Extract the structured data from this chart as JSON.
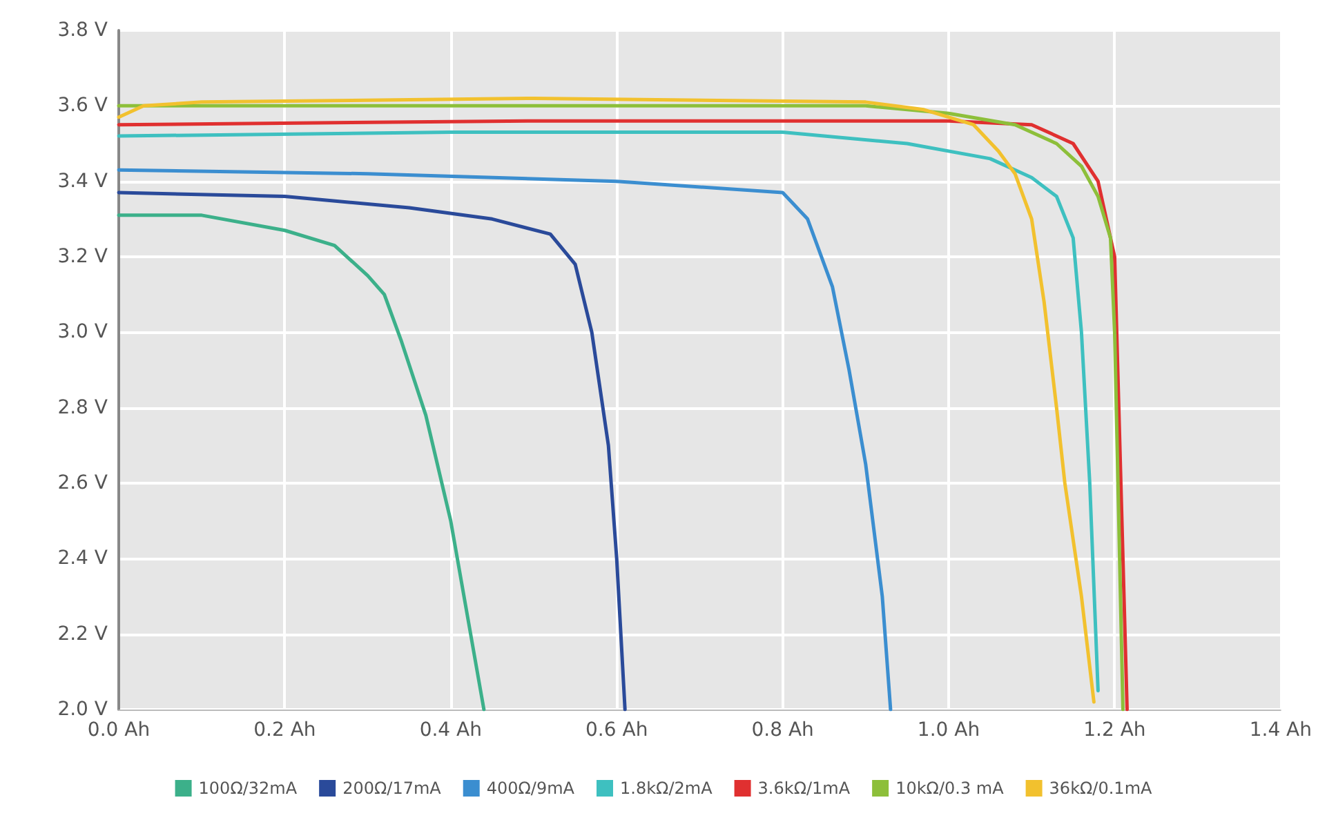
{
  "chart_data": {
    "type": "line",
    "xlim": [
      0,
      1.4
    ],
    "ylim": [
      2.0,
      3.8
    ],
    "xticks": [
      {
        "value": 0,
        "label": "0.0 Ah"
      },
      {
        "value": 0.2,
        "label": "0.2 Ah"
      },
      {
        "value": 0.4,
        "label": "0.4 Ah"
      },
      {
        "value": 0.6,
        "label": "0.6 Ah"
      },
      {
        "value": 0.8,
        "label": "0.8 Ah"
      },
      {
        "value": 1.0,
        "label": "1.0 Ah"
      },
      {
        "value": 1.2,
        "label": "1.2 Ah"
      },
      {
        "value": 1.4,
        "label": "1.4 Ah"
      }
    ],
    "yticks": [
      {
        "value": 2.0,
        "label": "2.0 V"
      },
      {
        "value": 2.2,
        "label": "2.2 V"
      },
      {
        "value": 2.4,
        "label": "2.4 V"
      },
      {
        "value": 2.6,
        "label": "2.6 V"
      },
      {
        "value": 2.8,
        "label": "2.8 V"
      },
      {
        "value": 3.0,
        "label": "3.0 V"
      },
      {
        "value": 3.2,
        "label": "3.2 V"
      },
      {
        "value": 3.4,
        "label": "3.4 V"
      },
      {
        "value": 3.6,
        "label": "3.6 V"
      },
      {
        "value": 3.8,
        "label": "3.8 V"
      }
    ],
    "grid": true,
    "legend": "bottom",
    "marker": "none",
    "line_style": "solid",
    "series": [
      {
        "name": "100Ω/32mA",
        "color": "#3cb08a",
        "x": [
          0,
          0.1,
          0.2,
          0.26,
          0.3,
          0.32,
          0.34,
          0.37,
          0.4,
          0.42,
          0.44
        ],
        "values": [
          3.31,
          3.31,
          3.27,
          3.23,
          3.15,
          3.1,
          2.98,
          2.78,
          2.5,
          2.25,
          2.0
        ]
      },
      {
        "name": "200Ω/17mA",
        "color": "#2a4a9a",
        "x": [
          0,
          0.2,
          0.35,
          0.45,
          0.52,
          0.55,
          0.57,
          0.59,
          0.6,
          0.61
        ],
        "values": [
          3.37,
          3.36,
          3.33,
          3.3,
          3.26,
          3.18,
          3.0,
          2.7,
          2.4,
          2.0
        ]
      },
      {
        "name": "400Ω/9mA",
        "color": "#3b8ed0",
        "x": [
          0,
          0.3,
          0.6,
          0.8,
          0.83,
          0.86,
          0.88,
          0.9,
          0.92,
          0.93
        ],
        "values": [
          3.43,
          3.42,
          3.4,
          3.37,
          3.3,
          3.12,
          2.9,
          2.65,
          2.3,
          2.0
        ]
      },
      {
        "name": "1.8kΩ/2mA",
        "color": "#3ec0c0",
        "x": [
          0,
          0.4,
          0.8,
          0.95,
          1.05,
          1.1,
          1.13,
          1.15,
          1.16,
          1.17,
          1.18
        ],
        "values": [
          3.52,
          3.53,
          3.53,
          3.5,
          3.46,
          3.41,
          3.36,
          3.25,
          3.0,
          2.6,
          2.05
        ]
      },
      {
        "name": "3.6kΩ/1mA",
        "color": "#e03030",
        "x": [
          0,
          0.5,
          1.0,
          1.1,
          1.15,
          1.18,
          1.2,
          1.205,
          1.21,
          1.215
        ],
        "values": [
          3.55,
          3.56,
          3.56,
          3.55,
          3.5,
          3.4,
          3.2,
          2.8,
          2.4,
          2.0
        ]
      },
      {
        "name": "10kΩ/0.3 mA",
        "color": "#8dbf3a",
        "x": [
          0,
          0.5,
          0.9,
          1.0,
          1.08,
          1.13,
          1.16,
          1.18,
          1.195,
          1.2,
          1.205,
          1.21
        ],
        "values": [
          3.6,
          3.6,
          3.6,
          3.58,
          3.55,
          3.5,
          3.44,
          3.36,
          3.25,
          3.0,
          2.5,
          2.0
        ]
      },
      {
        "name": "36kΩ/0.1mA",
        "color": "#f2c12e",
        "x": [
          0,
          0.03,
          0.1,
          0.5,
          0.9,
          0.97,
          1.03,
          1.06,
          1.08,
          1.1,
          1.115,
          1.13,
          1.14,
          1.16,
          1.175
        ],
        "values": [
          3.57,
          3.6,
          3.61,
          3.62,
          3.61,
          3.59,
          3.55,
          3.48,
          3.42,
          3.3,
          3.08,
          2.8,
          2.6,
          2.3,
          2.02
        ]
      }
    ]
  }
}
